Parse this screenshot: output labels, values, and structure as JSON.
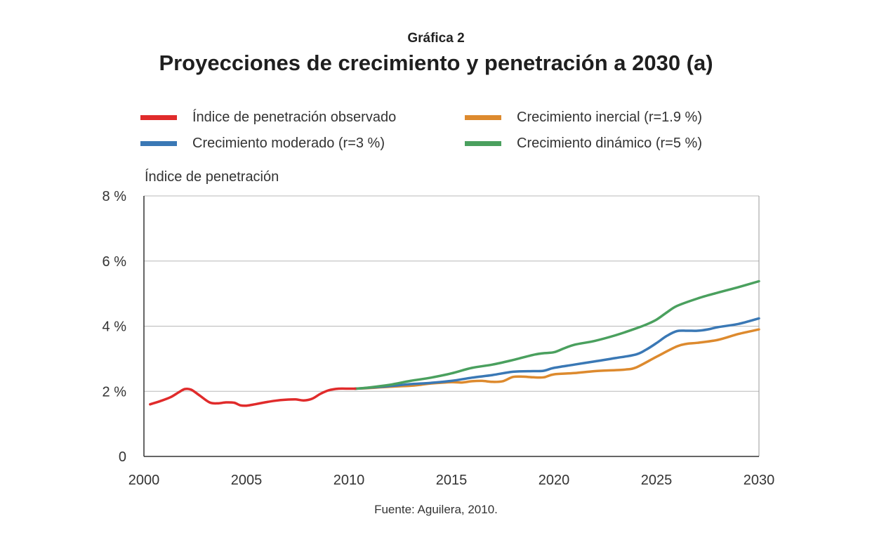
{
  "header": {
    "kicker": "Gráfica 2",
    "title": "Proyecciones de crecimiento y penetración a 2030 (a)"
  },
  "source": "Fuente: Aguilera, 2010.",
  "colors": {
    "observed": "#e02b2b",
    "inertial": "#dd8a2e",
    "moderate": "#3a78b5",
    "dynamic": "#4aa05e",
    "grid": "#b8b8b8",
    "axis": "#333333",
    "frame": "#999999"
  },
  "chart_data": {
    "type": "line",
    "title": "Proyecciones de crecimiento y penetración a 2030 (a)",
    "xlabel": "",
    "ylabel": "Índice de penetración",
    "xlim": [
      2000,
      2030
    ],
    "ylim": [
      0,
      8
    ],
    "grid": true,
    "legend_position": "top",
    "x_ticks": [
      "2000",
      "2005",
      "2010",
      "2015",
      "2020",
      "2025",
      "2030"
    ],
    "y_ticks": [
      "0",
      "2 %",
      "4 %",
      "6 %",
      "8 %"
    ],
    "series": [
      {
        "name": "Índice de penetración observado",
        "color_key": "observed",
        "x": [
          2000.3,
          2000.8,
          2001.3,
          2001.7,
          2002.0,
          2002.3,
          2002.7,
          2003.2,
          2003.6,
          2004.0,
          2004.4,
          2004.7,
          2005.0,
          2005.4,
          2005.9,
          2006.4,
          2006.9,
          2007.4,
          2007.8,
          2008.2,
          2008.6,
          2009.0,
          2009.5,
          2010.0,
          2010.3
        ],
        "values": [
          1.6,
          1.7,
          1.82,
          1.97,
          2.07,
          2.05,
          1.88,
          1.66,
          1.63,
          1.66,
          1.65,
          1.57,
          1.56,
          1.6,
          1.66,
          1.71,
          1.74,
          1.75,
          1.72,
          1.77,
          1.92,
          2.03,
          2.08,
          2.08,
          2.08
        ]
      },
      {
        "name": "Crecimiento inercial (r=1.9 %)",
        "color_key": "inertial",
        "x": [
          2010.3,
          2011,
          2012,
          2013,
          2013.5,
          2014,
          2015,
          2015.5,
          2016,
          2016.5,
          2017,
          2017.5,
          2018,
          2018.5,
          2019,
          2019.5,
          2020,
          2021,
          2022,
          2023,
          2023.5,
          2024,
          2025,
          2026,
          2026.5,
          2027,
          2028,
          2029,
          2030
        ],
        "values": [
          2.08,
          2.1,
          2.14,
          2.17,
          2.2,
          2.24,
          2.28,
          2.27,
          2.31,
          2.32,
          2.29,
          2.31,
          2.44,
          2.45,
          2.43,
          2.43,
          2.52,
          2.56,
          2.62,
          2.65,
          2.67,
          2.73,
          3.06,
          3.38,
          3.46,
          3.49,
          3.58,
          3.76,
          3.9
        ]
      },
      {
        "name": "Crecimiento moderado (r=3 %)",
        "color_key": "moderate",
        "x": [
          2010.3,
          2011,
          2012,
          2013,
          2014,
          2015,
          2016,
          2017,
          2018,
          2019,
          2019.5,
          2020,
          2021,
          2022,
          2023,
          2024,
          2024.5,
          2025,
          2025.5,
          2026,
          2026.5,
          2027,
          2027.5,
          2028,
          2029,
          2030
        ],
        "values": [
          2.08,
          2.11,
          2.16,
          2.22,
          2.26,
          2.32,
          2.42,
          2.5,
          2.6,
          2.62,
          2.63,
          2.72,
          2.82,
          2.92,
          3.02,
          3.13,
          3.28,
          3.48,
          3.7,
          3.85,
          3.86,
          3.86,
          3.9,
          3.97,
          4.07,
          4.24
        ]
      },
      {
        "name": "Crecimiento dinámico (r=5 %)",
        "color_key": "dynamic",
        "x": [
          2010.3,
          2011,
          2012,
          2013,
          2014,
          2015,
          2016,
          2017,
          2018,
          2019,
          2019.5,
          2020,
          2020.5,
          2021,
          2022,
          2023,
          2024,
          2024.5,
          2025,
          2025.5,
          2026,
          2027,
          2028,
          2029,
          2030
        ],
        "values": [
          2.08,
          2.12,
          2.2,
          2.32,
          2.42,
          2.55,
          2.72,
          2.82,
          2.96,
          3.12,
          3.17,
          3.2,
          3.32,
          3.43,
          3.55,
          3.72,
          3.93,
          4.05,
          4.2,
          4.42,
          4.62,
          4.85,
          5.03,
          5.2,
          5.38
        ]
      }
    ]
  }
}
